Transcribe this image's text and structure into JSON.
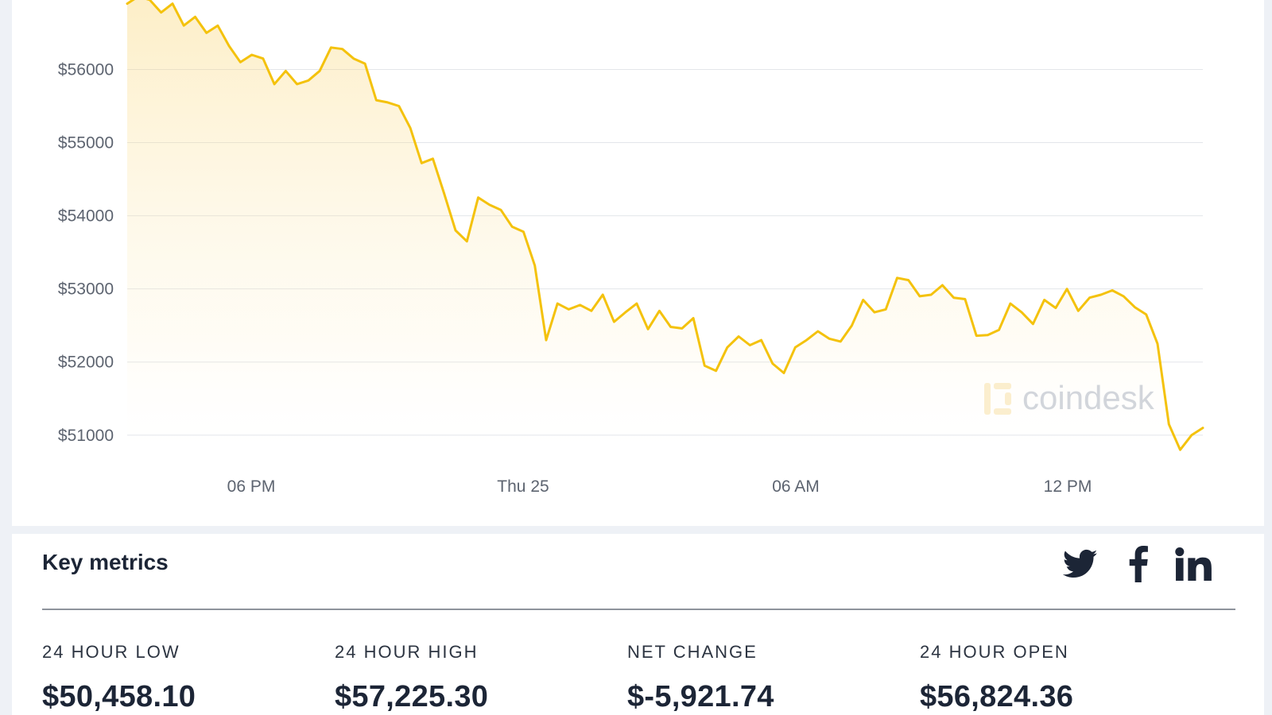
{
  "chart_data": {
    "type": "area",
    "x_ticks": [
      "06 PM",
      "Thu 25",
      "06 AM",
      "12 PM"
    ],
    "y_ticks": [
      "$51000",
      "$52000",
      "$53000",
      "$54000",
      "$55000",
      "$56000"
    ],
    "ylim": [
      50650,
      56950
    ],
    "series": [
      {
        "color": "#f4c20d",
        "values": [
          56900,
          57000,
          56950,
          56780,
          56900,
          56600,
          56720,
          56500,
          56600,
          56320,
          56100,
          56200,
          56150,
          55800,
          55980,
          55800,
          55850,
          55980,
          56300,
          56280,
          56150,
          56080,
          55580,
          55550,
          55500,
          55200,
          54720,
          54780,
          54300,
          53800,
          53650,
          54250,
          54150,
          54080,
          53850,
          53780,
          53320,
          52300,
          52800,
          52720,
          52780,
          52700,
          52920,
          52550,
          52680,
          52800,
          52450,
          52700,
          52480,
          52460,
          52600,
          51950,
          51880,
          52200,
          52350,
          52230,
          52300,
          51980,
          51850,
          52200,
          52300,
          52420,
          52320,
          52280,
          52500,
          52850,
          52680,
          52720,
          53150,
          53120,
          52900,
          52920,
          53050,
          52880,
          52860,
          52360,
          52370,
          52440,
          52800,
          52680,
          52520,
          52850,
          52740,
          53000,
          52700,
          52880,
          52920,
          52980,
          52900,
          52750,
          52650,
          52250,
          51150,
          50800,
          51000,
          51100
        ]
      }
    ],
    "watermark": "coindesk"
  },
  "metrics": {
    "title": "Key metrics",
    "items": [
      {
        "label": "24 HOUR LOW",
        "value": "$50,458.10"
      },
      {
        "label": "24 HOUR HIGH",
        "value": "$57,225.30"
      },
      {
        "label": "NET CHANGE",
        "value": "$-5,921.74"
      },
      {
        "label": "24 HOUR OPEN",
        "value": "$56,824.36"
      }
    ]
  },
  "social": {
    "icons": [
      "twitter-icon",
      "facebook-icon",
      "linkedin-icon"
    ],
    "color": "#1c2536"
  }
}
